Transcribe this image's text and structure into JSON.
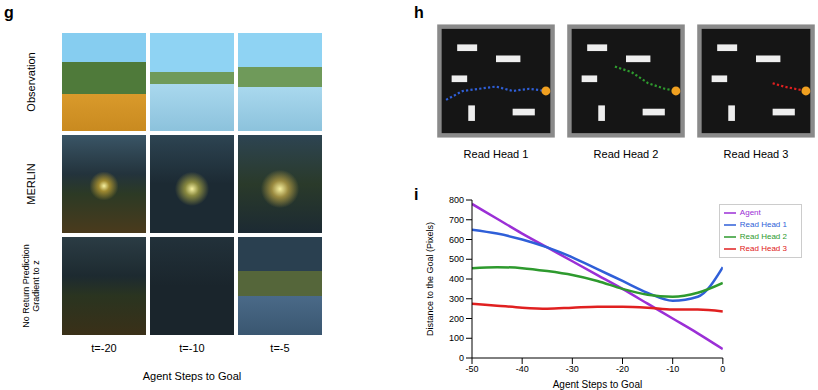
{
  "panel_g": {
    "label": "g",
    "rows": [
      "Observation",
      "MERLIN",
      "No Return Prediction Gradient to z"
    ],
    "columns": [
      "t=-20",
      "t=-10",
      "t=-5"
    ],
    "x_label": "Agent Steps to Goal"
  },
  "panel_h": {
    "label": "h",
    "maps": [
      "Read Head 1",
      "Read Head 2",
      "Read Head 3"
    ]
  },
  "chart_data": {
    "label": "i",
    "type": "line",
    "x_label": "Agent Steps to Goal",
    "y_label": "Distance to the Goal (Pixels)",
    "x": [
      -50,
      -45,
      -40,
      -35,
      -30,
      -25,
      -20,
      -15,
      -10,
      -5,
      0
    ],
    "xlim": [
      -50,
      0
    ],
    "xticks": [
      -50,
      -40,
      -30,
      -20,
      -10,
      0
    ],
    "ylim": [
      0,
      800
    ],
    "yticks": [
      0,
      100,
      200,
      300,
      400,
      500,
      600,
      700,
      800
    ],
    "legend": "top-right",
    "series": [
      {
        "name": "Agent",
        "color": "#9b2fd6",
        "values": [
          780,
          705,
          630,
          560,
          490,
          420,
          350,
          275,
          200,
          125,
          45
        ]
      },
      {
        "name": "Read Head 1",
        "color": "#2f5fd8",
        "values": [
          650,
          630,
          600,
          560,
          510,
          450,
          390,
          330,
          290,
          310,
          460
        ]
      },
      {
        "name": "Read Head 2",
        "color": "#2e9a2e",
        "values": [
          455,
          460,
          455,
          440,
          420,
          390,
          350,
          320,
          310,
          330,
          380
        ]
      },
      {
        "name": "Read Head 3",
        "color": "#e02020",
        "values": [
          275,
          265,
          255,
          250,
          255,
          260,
          260,
          255,
          245,
          245,
          235
        ]
      }
    ]
  }
}
